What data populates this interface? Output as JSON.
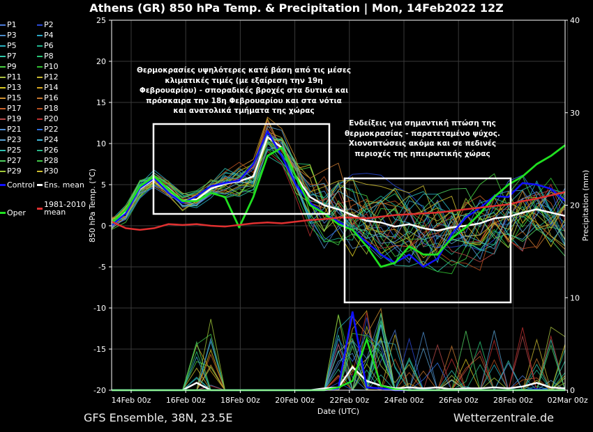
{
  "title": "Athens  (GR)  850 hPa Temp. & Precipitation | Mon, 14Feb2022 12Z",
  "footer": {
    "left": "GFS Ensemble, 38N, 23.5E",
    "right": "Wetterzentrale.de"
  },
  "notes": [
    "Θερμοκρασίες υψηλότερες κατά βάση από τις μέσες\nκλιματικές τιμές (με εξαίρεση την 19η\nΦεβρουαρίου) - σποραδικές βροχές στα δυτικά και\nπρόσκαιρα την 18η Φεβρουαρίου και στα νότια\nκαι ανατολικά τμήματα της χώρας",
    "Ενδείξεις για σημαντική πτώση της\nθερμοκρασίας - παρατεταμένο ψύχος.\nΧιονοπτώσεις ακόμα και σε πεδινές\nπεριοχές της ηπειρωτικής χώρας"
  ],
  "legend": [
    {
      "label": "P1",
      "color": "#4a7ad8"
    },
    {
      "label": "P2",
      "color": "#2a4ad8"
    },
    {
      "label": "P3",
      "color": "#4a8ac8"
    },
    {
      "label": "P4",
      "color": "#2aa8c8"
    },
    {
      "label": "P5",
      "color": "#28b0c0"
    },
    {
      "label": "P6",
      "color": "#20b890"
    },
    {
      "label": "P7",
      "color": "#30c8a8"
    },
    {
      "label": "P8",
      "color": "#28c878"
    },
    {
      "label": "P9",
      "color": "#48d040"
    },
    {
      "label": "P10",
      "color": "#30c030"
    },
    {
      "label": "P11",
      "color": "#a8c040"
    },
    {
      "label": "P12",
      "color": "#c8b830"
    },
    {
      "label": "P13",
      "color": "#d8c820"
    },
    {
      "label": "P14",
      "color": "#d8a820"
    },
    {
      "label": "P15",
      "color": "#d09030"
    },
    {
      "label": "P16",
      "color": "#c87830"
    },
    {
      "label": "P17",
      "color": "#c86028"
    },
    {
      "label": "P18",
      "color": "#b85020"
    },
    {
      "label": "P19",
      "color": "#b84848"
    },
    {
      "label": "P20",
      "color": "#c03030"
    },
    {
      "label": "P21",
      "color": "#5090d8"
    },
    {
      "label": "P22",
      "color": "#3070e0"
    },
    {
      "label": "P23",
      "color": "#58a0d0"
    },
    {
      "label": "P24",
      "color": "#40b8d8"
    },
    {
      "label": "P25",
      "color": "#30c0b0"
    },
    {
      "label": "P26",
      "color": "#28b888"
    },
    {
      "label": "P27",
      "color": "#50d060"
    },
    {
      "label": "P28",
      "color": "#40c848"
    },
    {
      "label": "P29",
      "color": "#a0c838"
    },
    {
      "label": "P30",
      "color": "#d0c030"
    },
    {
      "label": "Control",
      "color": "#1010ff"
    },
    {
      "label": "Ens. mean",
      "color": "#ffffff"
    },
    {
      "label": "Oper",
      "color": "#20e020"
    },
    {
      "label": "1981-2010\nmean",
      "color": "#e03030"
    }
  ],
  "axis_colors": {
    "grid": "#3a3a3a",
    "box": "#ffffff"
  },
  "chart_data": {
    "type": "line",
    "xlabel": "Date (UTC)",
    "ylabel": "850 hPa Temp. (°C)",
    "y2label": "Precipitation (mm)",
    "ylim": [
      -20,
      25
    ],
    "y2lim": [
      0,
      40
    ],
    "xlim": [
      "14Feb2022 12Z",
      "02Mar2022 12Z"
    ],
    "xticks": [
      "14Feb 00z",
      "16Feb 00z",
      "18Feb 00z",
      "20Feb 00z",
      "22Feb 00z",
      "24Feb 00z",
      "26Feb 00z",
      "28Feb 00z",
      "02Mar 00z"
    ],
    "yticks": [
      -20,
      -15,
      -10,
      -5,
      0,
      5,
      10,
      15,
      20,
      25
    ],
    "y2ticks": [
      0,
      10,
      20,
      30,
      40
    ],
    "x_hours": [
      0,
      12,
      24,
      36,
      48,
      60,
      72,
      84,
      96,
      108,
      120,
      132,
      144,
      156,
      168,
      180,
      192,
      204,
      216,
      228,
      240,
      252,
      264,
      276,
      288,
      300,
      312,
      324,
      336,
      348,
      360,
      372,
      384
    ],
    "series": [
      {
        "name": "Ens. mean",
        "color": "#ffffff",
        "width": 2.5,
        "values": [
          0.3,
          1.6,
          4.5,
          5.7,
          4.6,
          3.0,
          3.2,
          4.5,
          5.1,
          5.4,
          6.0,
          10.8,
          9.5,
          6.0,
          3.5,
          2.5,
          2.0,
          1.3,
          0.6,
          0.4,
          -0.1,
          0.2,
          -0.3,
          -0.6,
          -0.2,
          0.0,
          0.3,
          0.9,
          1.1,
          1.6,
          2.0,
          1.6,
          1.2
        ]
      },
      {
        "name": "Control",
        "color": "#1010ff",
        "width": 2.5,
        "values": [
          0.1,
          1.5,
          4.6,
          5.8,
          4.0,
          2.8,
          3.6,
          4.8,
          5.2,
          5.5,
          7.5,
          11.5,
          8.5,
          5.0,
          2.8,
          1.5,
          0.5,
          -0.5,
          -2.0,
          -3.5,
          -4.5,
          -3.5,
          -5.0,
          -4.0,
          -1.0,
          1.0,
          2.2,
          3.6,
          3.5,
          5.2,
          5.0,
          4.5,
          3.0
        ]
      },
      {
        "name": "Oper",
        "color": "#20e020",
        "width": 2.8,
        "values": [
          0.3,
          1.9,
          4.8,
          6.0,
          4.5,
          3.0,
          3.0,
          4.0,
          3.5,
          -0.2,
          3.5,
          8.5,
          9.5,
          6.0,
          2.5,
          1.5,
          0.2,
          -0.5,
          -2.5,
          -5.0,
          -4.5,
          -2.5,
          -3.5,
          -3.5,
          -1.5,
          -0.2,
          1.5,
          3.5,
          5.0,
          6.0,
          7.5,
          8.5,
          9.8
        ]
      },
      {
        "name": "1981-2010 mean",
        "color": "#e03030",
        "width": 2.5,
        "values": [
          0.5,
          -0.3,
          -0.5,
          -0.3,
          0.2,
          0.1,
          0.2,
          0.0,
          -0.1,
          0.1,
          0.3,
          0.4,
          0.3,
          0.5,
          0.7,
          0.8,
          1.0,
          1.0,
          0.9,
          1.1,
          1.3,
          1.4,
          1.5,
          1.6,
          1.8,
          2.0,
          2.2,
          2.4,
          2.6,
          3.0,
          3.3,
          3.7,
          4.1
        ]
      }
    ],
    "precip_series": [
      {
        "name": "Ens. mean",
        "color": "#ffffff",
        "values": [
          0,
          0,
          0,
          0,
          0,
          0,
          0.8,
          0,
          0,
          0,
          0,
          0,
          0,
          0,
          0,
          0.2,
          0.3,
          2.5,
          1.0,
          0.5,
          0.2,
          0.3,
          0.2,
          0.3,
          0.1,
          0.2,
          0.2,
          0.3,
          0.2,
          0.4,
          0.8,
          0.3,
          0.2
        ]
      },
      {
        "name": "Control",
        "color": "#1010ff",
        "values": [
          0,
          0,
          0,
          0,
          0,
          0,
          0,
          0,
          0,
          0,
          0,
          0,
          0,
          0,
          0,
          0,
          0.2,
          8.5,
          0.3,
          0.2,
          0,
          0,
          0,
          0,
          0,
          0,
          0,
          0,
          0,
          0,
          0.1,
          0,
          0
        ]
      },
      {
        "name": "Oper",
        "color": "#20e020",
        "values": [
          0,
          0,
          0,
          0,
          0,
          0,
          0,
          0,
          0,
          0,
          0,
          0,
          0,
          0,
          0,
          0,
          0.3,
          1.0,
          5.5,
          0.5,
          0.1,
          0,
          0,
          0,
          0,
          0,
          0,
          0,
          0,
          0,
          0,
          0,
          0
        ]
      }
    ]
  }
}
